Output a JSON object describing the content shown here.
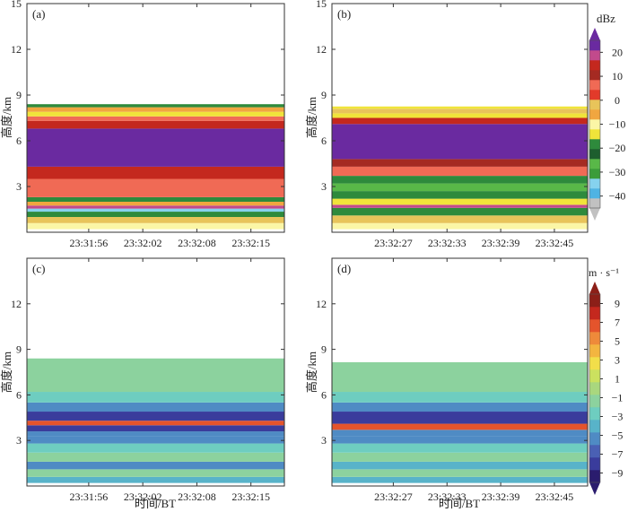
{
  "chart_data": [
    {
      "type": "heatmap",
      "panel_label": "(a)",
      "quantity": "reflectivity",
      "ylabel": "高度/km",
      "xlabel": "",
      "ylim": [
        0,
        15
      ],
      "yticks": [
        3,
        6,
        9,
        12,
        15
      ],
      "xticks": [
        "23:31:56",
        "23:32:02",
        "23:32:08",
        "23:32:15"
      ],
      "layers": [
        {
          "from": 0.2,
          "to": 0.6,
          "value": -10
        },
        {
          "from": 0.6,
          "to": 1.0,
          "value": 0
        },
        {
          "from": 1.0,
          "to": 1.35,
          "value": -20
        },
        {
          "from": 1.35,
          "to": 1.55,
          "value": -35
        },
        {
          "from": 1.55,
          "to": 1.75,
          "value": 20
        },
        {
          "from": 1.75,
          "to": 2.0,
          "value": -5
        },
        {
          "from": 2.0,
          "to": 2.3,
          "value": -20
        },
        {
          "from": 2.3,
          "to": 3.0,
          "value": 5
        },
        {
          "from": 3.0,
          "to": 3.5,
          "value": 8
        },
        {
          "from": 3.5,
          "to": 4.3,
          "value": 15
        },
        {
          "from": 4.3,
          "to": 6.8,
          "value": 22
        },
        {
          "from": 6.8,
          "to": 7.3,
          "value": 15
        },
        {
          "from": 7.3,
          "to": 7.6,
          "value": 8
        },
        {
          "from": 7.6,
          "to": 7.9,
          "value": -15
        },
        {
          "from": 7.9,
          "to": 8.2,
          "value": -5
        },
        {
          "from": 8.2,
          "to": 8.4,
          "value": -20
        }
      ]
    },
    {
      "type": "heatmap",
      "panel_label": "(b)",
      "quantity": "reflectivity",
      "ylabel": "高度/km",
      "xlabel": "",
      "ylim": [
        0,
        15
      ],
      "yticks": [
        3,
        6,
        9,
        12,
        15
      ],
      "xticks": [
        "23:32:27",
        "23:32:33",
        "23:32:39",
        "23:32:45"
      ],
      "layers": [
        {
          "from": 0.2,
          "to": 0.6,
          "value": -10
        },
        {
          "from": 0.6,
          "to": 1.1,
          "value": 0
        },
        {
          "from": 1.1,
          "to": 1.6,
          "value": -20
        },
        {
          "from": 1.6,
          "to": 1.8,
          "value": 20
        },
        {
          "from": 1.8,
          "to": 2.2,
          "value": -15
        },
        {
          "from": 2.2,
          "to": 2.7,
          "value": -20
        },
        {
          "from": 2.7,
          "to": 3.2,
          "value": -25
        },
        {
          "from": 3.2,
          "to": 3.7,
          "value": -20
        },
        {
          "from": 3.7,
          "to": 4.3,
          "value": 5
        },
        {
          "from": 4.3,
          "to": 4.8,
          "value": 12
        },
        {
          "from": 4.8,
          "to": 7.1,
          "value": 22
        },
        {
          "from": 7.1,
          "to": 7.5,
          "value": 15
        },
        {
          "from": 7.5,
          "to": 7.8,
          "value": -15
        },
        {
          "from": 7.8,
          "to": 8.1,
          "value": 0
        },
        {
          "from": 8.1,
          "to": 8.25,
          "value": -15
        }
      ]
    },
    {
      "type": "heatmap",
      "panel_label": "(c)",
      "quantity": "velocity",
      "ylabel": "高度/km",
      "xlabel": "时间/BT",
      "ylim": [
        0,
        15
      ],
      "yticks": [
        3,
        6,
        9,
        12
      ],
      "xticks": [
        "23:31:56",
        "23:32:02",
        "23:32:08",
        "23:32:15"
      ],
      "layers": [
        {
          "from": 0.2,
          "to": 0.6,
          "value": -4
        },
        {
          "from": 0.6,
          "to": 1.1,
          "value": -2
        },
        {
          "from": 1.1,
          "to": 1.6,
          "value": -5
        },
        {
          "from": 1.6,
          "to": 2.2,
          "value": -1
        },
        {
          "from": 2.2,
          "to": 2.8,
          "value": -3
        },
        {
          "from": 2.8,
          "to": 3.3,
          "value": -5
        },
        {
          "from": 3.3,
          "to": 3.6,
          "value": -6
        },
        {
          "from": 3.6,
          "to": 4.0,
          "value": -8
        },
        {
          "from": 4.0,
          "to": 4.3,
          "value": 7
        },
        {
          "from": 4.3,
          "to": 4.9,
          "value": -8
        },
        {
          "from": 4.9,
          "to": 5.5,
          "value": -6
        },
        {
          "from": 5.5,
          "to": 6.2,
          "value": -3
        },
        {
          "from": 6.2,
          "to": 8.4,
          "value": -1
        }
      ]
    },
    {
      "type": "heatmap",
      "panel_label": "(d)",
      "quantity": "velocity",
      "ylabel": "高度/km",
      "xlabel": "时间/BT",
      "ylim": [
        0,
        15
      ],
      "yticks": [
        3,
        6,
        9,
        12
      ],
      "xticks": [
        "23:32:27",
        "23:32:33",
        "23:32:39",
        "23:32:45"
      ],
      "layers": [
        {
          "from": 0.2,
          "to": 0.6,
          "value": -4
        },
        {
          "from": 0.6,
          "to": 1.1,
          "value": -2
        },
        {
          "from": 1.1,
          "to": 1.6,
          "value": -4
        },
        {
          "from": 1.6,
          "to": 2.2,
          "value": -2
        },
        {
          "from": 2.2,
          "to": 2.8,
          "value": -3
        },
        {
          "from": 2.8,
          "to": 3.3,
          "value": -5
        },
        {
          "from": 3.3,
          "to": 3.7,
          "value": -6
        },
        {
          "from": 3.7,
          "to": 4.1,
          "value": 7
        },
        {
          "from": 4.1,
          "to": 4.9,
          "value": -8
        },
        {
          "from": 4.9,
          "to": 5.5,
          "value": -6
        },
        {
          "from": 5.5,
          "to": 6.2,
          "value": -3
        },
        {
          "from": 6.2,
          "to": 8.15,
          "value": -1
        }
      ]
    }
  ],
  "colorbars": [
    {
      "name": "reflectivity",
      "unit": "dBz",
      "range": [
        -45,
        25
      ],
      "tick_values": [
        -40,
        -30,
        -20,
        -10,
        0,
        10,
        20
      ],
      "tick_labels": [
        "−40",
        "−30",
        "−20",
        "−10",
        "0",
        "10",
        "20"
      ],
      "colors": [
        "#c1c1c1",
        "#4fb3e3",
        "#86d2ee",
        "#3b9c3a",
        "#59b848",
        "#1d5e2e",
        "#2e8a3c",
        "#f0e43a",
        "#fbf6a6",
        "#f0a640",
        "#e8c45a",
        "#e23a2a",
        "#f06a55",
        "#a52a22",
        "#c4281e",
        "#c24a8c",
        "#6a2aa0"
      ]
    },
    {
      "name": "velocity",
      "unit": "m · s⁻¹",
      "range": [
        -10,
        10
      ],
      "tick_values": [
        -9,
        -7,
        -5,
        -3,
        -1,
        1,
        3,
        5,
        7,
        9
      ],
      "tick_labels": [
        "−9",
        "−7",
        "−5",
        "−3",
        "−1",
        "1",
        "3",
        "5",
        "7",
        "9"
      ],
      "colors": [
        "#2a1c6e",
        "#3a3c9c",
        "#4a60b4",
        "#4f8bc4",
        "#58b3c9",
        "#6ecdc0",
        "#8cd29e",
        "#a9d77e",
        "#cbe15f",
        "#f2de4a",
        "#f3b540",
        "#ee8a3a",
        "#e4542c",
        "#c4281e",
        "#8c1f18"
      ]
    }
  ]
}
